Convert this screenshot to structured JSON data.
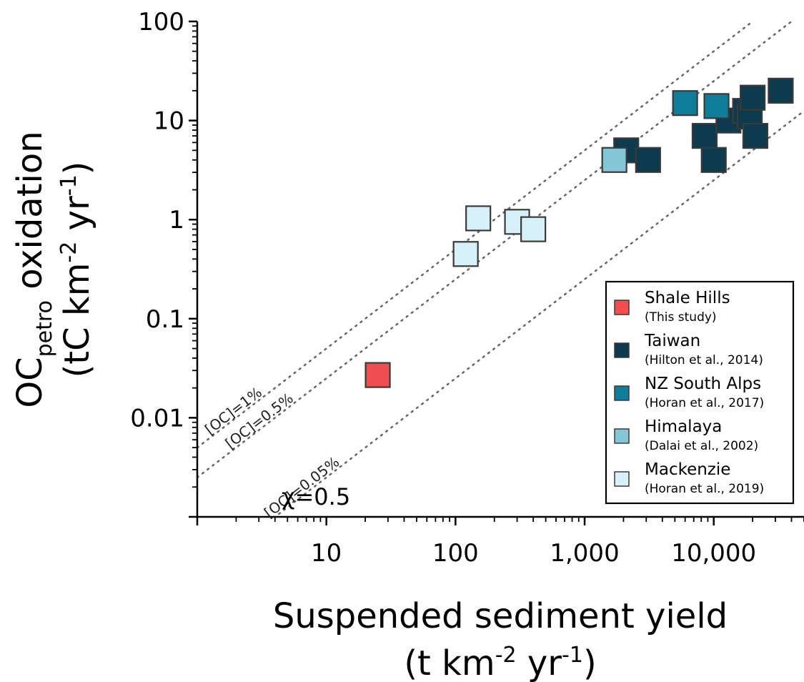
{
  "chart_data": {
    "type": "scatter",
    "xscale": "log",
    "yscale": "log",
    "xlim": [
      1,
      50000
    ],
    "ylim": [
      0.001,
      100
    ],
    "xlabel": "Suspended sediment yield",
    "xlabel_units": {
      "pre": "(t km",
      "exp1": "-2",
      "mid": " yr",
      "exp2": "-1",
      "post": ")"
    },
    "ylabel": {
      "pre": "OC",
      "sub": "petro",
      "post": " oxidation"
    },
    "ylabel_units": {
      "pre": "(tC km",
      "exp1": "-2",
      "mid": " yr",
      "exp2": "-1",
      "post": ")"
    },
    "xticks": [
      {
        "value": 10,
        "label": "10"
      },
      {
        "value": 100,
        "label": "100"
      },
      {
        "value": 1000,
        "label": "1,000"
      },
      {
        "value": 10000,
        "label": "10,000"
      }
    ],
    "yticks": [
      {
        "value": 100,
        "label": "100"
      },
      {
        "value": 10,
        "label": "10"
      },
      {
        "value": 1,
        "label": "1"
      },
      {
        "value": 0.1,
        "label": "0.1"
      },
      {
        "value": 0.01,
        "label": "0.01"
      }
    ],
    "reference_lines": [
      {
        "label": "[OC]=1%",
        "fraction": 0.01
      },
      {
        "label": "[OC]=0.5%",
        "fraction": 0.005
      },
      {
        "label": "[OC]=0.05%",
        "fraction": 0.0005
      }
    ],
    "annotation": "χ=0.5",
    "legend_position": "bottom-right",
    "series": [
      {
        "name": "Shale Hills",
        "source": "(This study)",
        "color": "#f04f4f",
        "points": [
          [
            25,
            0.027
          ]
        ]
      },
      {
        "name": "Taiwan",
        "source": "(Hilton et al., 2014)",
        "color": "#0d3b4d",
        "points": [
          [
            2100,
            5
          ],
          [
            3100,
            4
          ],
          [
            8500,
            7
          ],
          [
            10000,
            4
          ],
          [
            13000,
            10
          ],
          [
            17500,
            12.5
          ],
          [
            19000,
            11
          ],
          [
            20000,
            17
          ],
          [
            21000,
            7
          ],
          [
            33000,
            20
          ]
        ]
      },
      {
        "name": "NZ South Alps",
        "source": "(Horan et al., 2017)",
        "color": "#0f7d9a",
        "points": [
          [
            6000,
            15
          ],
          [
            10500,
            14
          ]
        ]
      },
      {
        "name": "Himalaya",
        "source": "(Dalai et al., 2002)",
        "color": "#82c6d8",
        "points": [
          [
            1700,
            4
          ]
        ]
      },
      {
        "name": "Mackenzie",
        "source": "(Horan et al., 2019)",
        "color": "#d6f1f7",
        "points": [
          [
            120,
            0.45
          ],
          [
            150,
            1.03
          ],
          [
            300,
            0.95
          ],
          [
            400,
            0.8
          ]
        ]
      }
    ]
  }
}
